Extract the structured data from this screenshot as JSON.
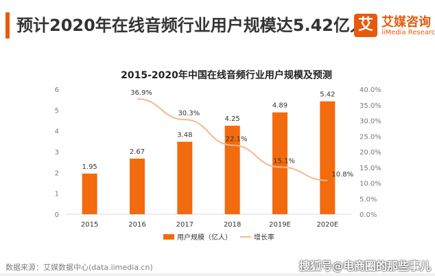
{
  "header": {
    "headline": "预计2020年在线音频行业用户规模达5.42亿人",
    "brand_name": "艾媒咨询",
    "brand_sub": "iiMedia Research",
    "brand_logo_char": "艾"
  },
  "chart_data": {
    "type": "bar",
    "title": "2015-2020年中国在线音频行业用户规模及预测",
    "categories": [
      "2015",
      "2016",
      "2017",
      "2018",
      "2019E",
      "2020E"
    ],
    "series": [
      {
        "name": "用户规模（亿人）",
        "type": "bar",
        "axis": "left",
        "values": [
          1.95,
          2.67,
          3.48,
          4.25,
          4.89,
          5.42
        ],
        "labels": [
          "1.95",
          "2.67",
          "3.48",
          "4.25",
          "4.89",
          "5.42"
        ]
      },
      {
        "name": "增长率",
        "type": "line",
        "axis": "right",
        "values": [
          null,
          36.9,
          30.3,
          22.1,
          15.1,
          10.8
        ],
        "labels": [
          "",
          "36.9%",
          "30.3%",
          "22.1%",
          "15.1%",
          "10.8%"
        ]
      }
    ],
    "y_left": {
      "min": 0,
      "max": 6,
      "ticks": [
        "0",
        "1",
        "2",
        "3",
        "4",
        "5",
        "6"
      ]
    },
    "y_right": {
      "min": 0,
      "max": 40,
      "ticks": [
        "0.0%",
        "5.0%",
        "10.0%",
        "15.0%",
        "20.0%",
        "25.0%",
        "30.0%",
        "35.0%",
        "40.0%"
      ]
    },
    "legend_position": "bottom",
    "grid": false,
    "colors": {
      "bar": "#f26b0f",
      "line": "#f7b78c"
    }
  },
  "footer": {
    "source": "数据来源：艾媒数据中心(data.iimedia.cn)",
    "watermark": "搜狐号@电商圈的那些事儿"
  }
}
